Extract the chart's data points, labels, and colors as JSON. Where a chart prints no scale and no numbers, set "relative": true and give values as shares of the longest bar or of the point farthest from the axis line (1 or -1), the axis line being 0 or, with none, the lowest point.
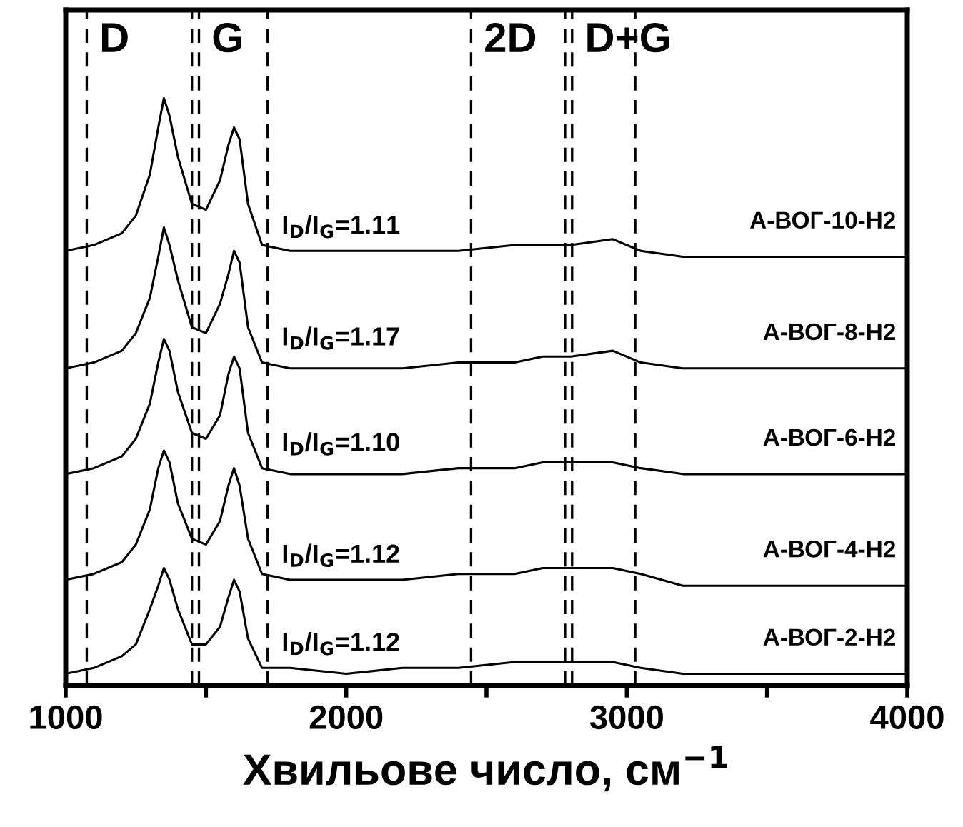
{
  "chart_data": {
    "type": "line",
    "relative": true,
    "xlabel": "Хвильове число, см$^{−1}$",
    "xlim": [
      1000,
      4000
    ],
    "xticks": [
      1000,
      {
        "value": 1500,
        "label": null
      },
      2000,
      {
        "value": 2500,
        "label": null
      },
      3000,
      {
        "value": 3500,
        "label": null
      },
      4000
    ],
    "tick_labels": "x",
    "grid": false,
    "legend": false,
    "marker": "none",
    "line_style": "solid",
    "x": [
      1000,
      1100,
      1200,
      1250,
      1300,
      1330,
      1350,
      1370,
      1400,
      1450,
      1500,
      1550,
      1580,
      1600,
      1620,
      1650,
      1700,
      1800,
      2000,
      2200,
      2400,
      2600,
      2700,
      2800,
      2950,
      3050,
      3200,
      3500,
      4000
    ],
    "series": [
      {
        "name": "A-ВОГ-10-H2",
        "color": "#000000",
        "values": [
          0.74,
          0.75,
          0.77,
          0.8,
          0.87,
          0.95,
          1.0,
          0.97,
          0.9,
          0.82,
          0.81,
          0.86,
          0.92,
          0.95,
          0.93,
          0.82,
          0.75,
          0.74,
          0.74,
          0.74,
          0.74,
          0.75,
          0.75,
          0.75,
          0.76,
          0.74,
          0.73,
          0.73,
          0.73
        ]
      },
      {
        "name": "A-ВОГ-8-H2",
        "color": "#000000",
        "values": [
          0.54,
          0.55,
          0.57,
          0.6,
          0.66,
          0.73,
          0.78,
          0.75,
          0.69,
          0.61,
          0.6,
          0.65,
          0.7,
          0.74,
          0.72,
          0.61,
          0.55,
          0.54,
          0.54,
          0.54,
          0.55,
          0.55,
          0.56,
          0.56,
          0.57,
          0.55,
          0.54,
          0.54,
          0.54
        ]
      },
      {
        "name": "A-ВОГ-6-H2",
        "color": "#000000",
        "values": [
          0.36,
          0.37,
          0.39,
          0.42,
          0.48,
          0.55,
          0.59,
          0.57,
          0.5,
          0.43,
          0.42,
          0.46,
          0.53,
          0.56,
          0.54,
          0.43,
          0.37,
          0.36,
          0.36,
          0.36,
          0.37,
          0.37,
          0.38,
          0.38,
          0.38,
          0.37,
          0.36,
          0.36,
          0.36
        ]
      },
      {
        "name": "A-ВОГ-4-H2",
        "color": "#000000",
        "values": [
          0.18,
          0.19,
          0.21,
          0.24,
          0.3,
          0.37,
          0.4,
          0.38,
          0.31,
          0.25,
          0.24,
          0.28,
          0.34,
          0.37,
          0.34,
          0.25,
          0.19,
          0.18,
          0.18,
          0.18,
          0.19,
          0.19,
          0.2,
          0.2,
          0.2,
          0.19,
          0.17,
          0.17,
          0.17
        ]
      },
      {
        "name": "A-ВОГ-2-H2",
        "color": "#000000",
        "values": [
          0.02,
          0.03,
          0.05,
          0.07,
          0.13,
          0.17,
          0.2,
          0.18,
          0.13,
          0.07,
          0.07,
          0.1,
          0.15,
          0.18,
          0.16,
          0.08,
          0.03,
          0.03,
          0.02,
          0.03,
          0.03,
          0.04,
          0.04,
          0.04,
          0.04,
          0.03,
          0.02,
          0.02,
          0.02
        ]
      }
    ],
    "ref_lines": [
      {
        "axis": "x",
        "value": 1075,
        "line_style": "dashed",
        "label": "D"
      },
      {
        "axis": "x",
        "value": 1450,
        "line_style": "dashed"
      },
      {
        "axis": "x",
        "value": 1475,
        "line_style": "dashed",
        "label": "G"
      },
      {
        "axis": "x",
        "value": 1720,
        "line_style": "dashed"
      },
      {
        "axis": "x",
        "value": 2445,
        "line_style": "dashed",
        "label": "2D"
      },
      {
        "axis": "x",
        "value": 2780,
        "line_style": "dashed"
      },
      {
        "axis": "x",
        "value": 2805,
        "line_style": "dashed",
        "label": "D+G"
      },
      {
        "axis": "x",
        "value": 3030,
        "line_style": "dashed"
      }
    ],
    "annotations": [
      "I$_{D}$/I$_{G}$=1.11",
      "I$_{D}$/I$_{G}$=1.17",
      "I$_{D}$/I$_{G}$=1.10",
      "I$_{D}$/I$_{G}$=1.12",
      "I$_{D}$/I$_{G}$=1.12"
    ]
  }
}
